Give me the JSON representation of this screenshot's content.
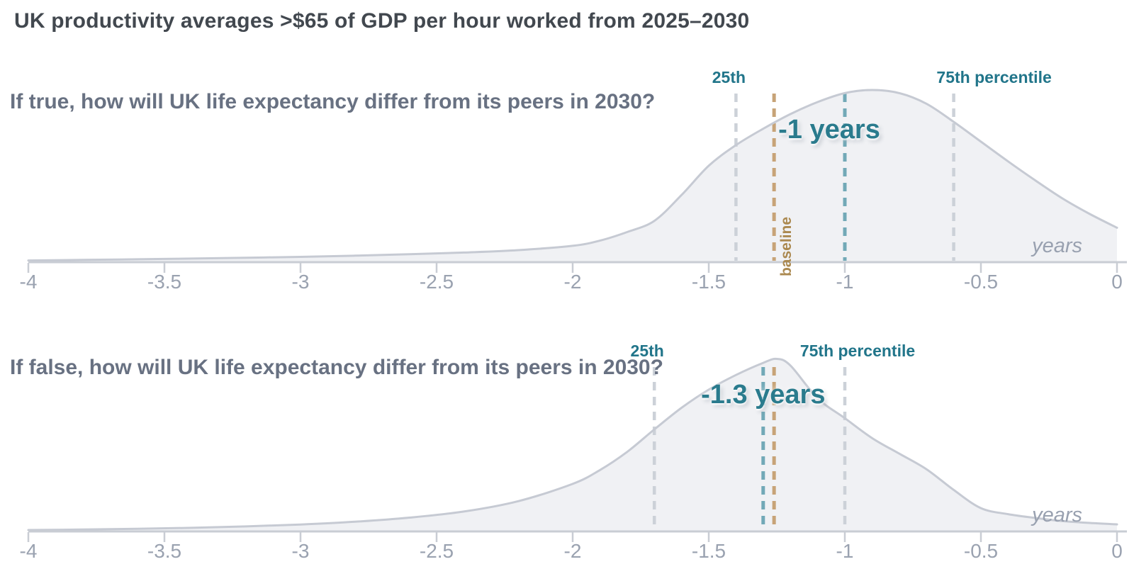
{
  "title": "UK productivity averages >$65 of GDP per hour worked from 2025–2030",
  "axis": {
    "min": -4,
    "max": 0,
    "ticks": [
      -4,
      -3.5,
      -3,
      -2.5,
      -2,
      -1.5,
      -1,
      -0.5,
      0
    ],
    "tick_labels": [
      "-4",
      "-3.5",
      "-3",
      "-2.5",
      "-2",
      "-1.5",
      "-1",
      "-0.5",
      "0"
    ],
    "unit_label": "years"
  },
  "colors": {
    "title": "#42484f",
    "question": "#687182",
    "teal_label": "#21758a",
    "teal_annotation": "#2a7b8d",
    "teal_dash": "#72a9b7",
    "tan_dash": "#c7a377",
    "tan_text": "#ab8950",
    "gray_dash": "#ccd1d8",
    "curve_stroke": "#c6cad3",
    "curve_fill": "#f0f1f4",
    "axis_line": "#c9cdd4",
    "tick_label": "#9aa2b0"
  },
  "chart_data": [
    {
      "type": "area",
      "question": "If true, how will UK life expectancy differ from its peers in 2030?",
      "annotation": "-1 years",
      "unit_label": "years",
      "markers": {
        "p25": {
          "value": -1.4,
          "label": "25th"
        },
        "p75": {
          "value": -0.6,
          "label": "75th percentile"
        },
        "median": {
          "value": -1.0,
          "label": "-1 years"
        },
        "baseline": {
          "value": -1.26,
          "label": "baseline"
        }
      },
      "xlim": [
        -4,
        0
      ],
      "x": [
        -4,
        -3.8,
        -3.6,
        -3.4,
        -3.2,
        -3,
        -2.8,
        -2.6,
        -2.4,
        -2.2,
        -2,
        -1.9,
        -1.8,
        -1.7,
        -1.6,
        -1.5,
        -1.4,
        -1.3,
        -1.2,
        -1.1,
        -1,
        -0.9,
        -0.8,
        -0.7,
        -0.6,
        -0.5,
        -0.4,
        -0.3,
        -0.2,
        -0.1,
        0
      ],
      "density": [
        0.01,
        0.013,
        0.017,
        0.021,
        0.026,
        0.031,
        0.038,
        0.046,
        0.056,
        0.07,
        0.095,
        0.125,
        0.175,
        0.24,
        0.39,
        0.56,
        0.68,
        0.775,
        0.86,
        0.93,
        0.982,
        1,
        0.982,
        0.92,
        0.815,
        0.7,
        0.585,
        0.475,
        0.37,
        0.28,
        0.2
      ]
    },
    {
      "type": "area",
      "question": "If false, how will UK life expectancy differ from its peers in 2030?",
      "annotation": "-1.3 years",
      "unit_label": "years",
      "markers": {
        "p25": {
          "value": -1.7,
          "label": "25th"
        },
        "p75": {
          "value": -1.0,
          "label": "75th percentile"
        },
        "median": {
          "value": -1.3,
          "label": "-1.3 years"
        },
        "baseline": {
          "value": -1.26,
          "label": ""
        }
      },
      "xlim": [
        -4,
        0
      ],
      "x": [
        -4,
        -3.8,
        -3.6,
        -3.4,
        -3.2,
        -3,
        -2.8,
        -2.6,
        -2.4,
        -2.2,
        -2,
        -1.9,
        -1.8,
        -1.7,
        -1.6,
        -1.5,
        -1.4,
        -1.3,
        -1.25,
        -1.2,
        -1.1,
        -1,
        -0.9,
        -0.8,
        -0.7,
        -0.6,
        -0.5,
        -0.4,
        -0.3,
        -0.2,
        -0.1,
        0
      ],
      "density": [
        0.008,
        0.011,
        0.015,
        0.021,
        0.029,
        0.04,
        0.056,
        0.08,
        0.115,
        0.175,
        0.275,
        0.355,
        0.46,
        0.59,
        0.715,
        0.82,
        0.905,
        0.975,
        0.998,
        0.96,
        0.77,
        0.655,
        0.54,
        0.45,
        0.36,
        0.24,
        0.135,
        0.1,
        0.078,
        0.06,
        0.049,
        0.041
      ]
    }
  ]
}
